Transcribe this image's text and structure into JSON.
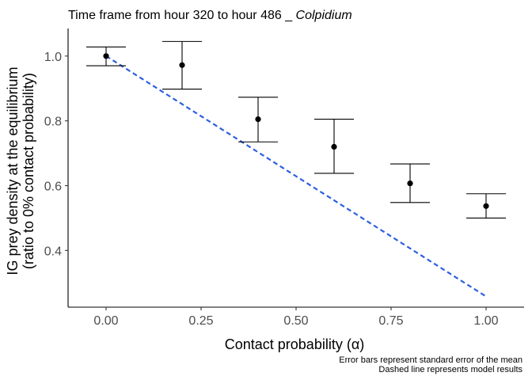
{
  "chart_data": {
    "type": "scatter",
    "title_prefix": "Time frame from hour 320  to hour  486 _ ",
    "title_italic": "Colpidium",
    "xlabel": "Contact probability (α)",
    "ylabel_line1": "IG prey density at the equilibrium",
    "ylabel_line2": "(ratio to 0% contact probability)",
    "xlim": [
      -0.1,
      1.1
    ],
    "ylim": [
      0.225,
      1.085
    ],
    "x_ticks": [
      0.0,
      0.25,
      0.5,
      0.75,
      1.0
    ],
    "x_tick_labels": [
      "0.00",
      "0.25",
      "0.50",
      "0.75",
      "1.00"
    ],
    "y_ticks": [
      0.4,
      0.6,
      0.8,
      1.0
    ],
    "y_tick_labels": [
      "0.4",
      "0.6",
      "0.8",
      "1.0"
    ],
    "grid": false,
    "points": [
      {
        "x": 0.0,
        "y": 1.0,
        "lower": 0.97,
        "upper": 1.028
      },
      {
        "x": 0.2,
        "y": 0.972,
        "lower": 0.898,
        "upper": 1.045
      },
      {
        "x": 0.4,
        "y": 0.805,
        "lower": 0.735,
        "upper": 0.873
      },
      {
        "x": 0.6,
        "y": 0.72,
        "lower": 0.638,
        "upper": 0.805
      },
      {
        "x": 0.8,
        "y": 0.607,
        "lower": 0.548,
        "upper": 0.667
      },
      {
        "x": 1.0,
        "y": 0.537,
        "lower": 0.5,
        "upper": 0.575
      }
    ],
    "model_line": {
      "x": [
        0.0,
        1.0
      ],
      "y": [
        1.0,
        0.258
      ],
      "color": "#2c5fe0",
      "style": "dashed"
    },
    "caption_line1": "Error bars represent standard error of the mean",
    "caption_line2": "Dashed line represents model results"
  }
}
